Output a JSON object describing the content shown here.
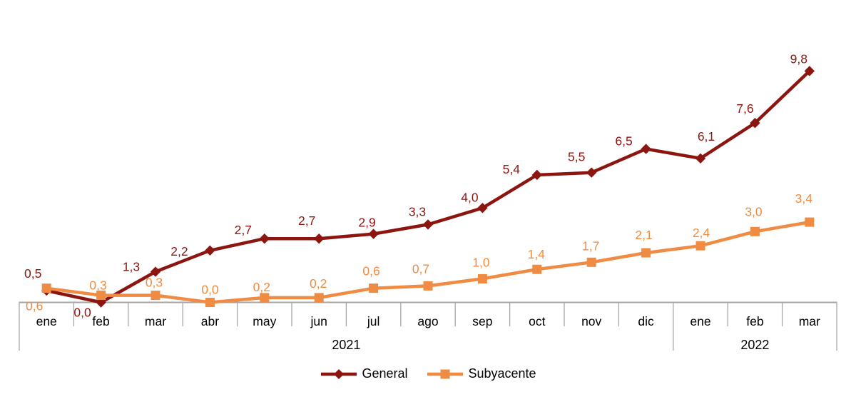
{
  "page": {
    "background": "#ffffff"
  },
  "chart_data": {
    "type": "line",
    "title": "",
    "xlabel": "",
    "ylabel": "",
    "categories": [
      "ene",
      "feb",
      "mar",
      "abr",
      "may",
      "jun",
      "jul",
      "ago",
      "sep",
      "oct",
      "nov",
      "dic",
      "ene",
      "feb",
      "mar"
    ],
    "year_groups": [
      {
        "label": "2021",
        "months": 12
      },
      {
        "label": "2022",
        "months": 3
      }
    ],
    "ylim": [
      0,
      11.6
    ],
    "grid": false,
    "y_axis_shown": false,
    "legend_position": "bottom-center",
    "axis_color": "#a6a6a6",
    "text_color": "#000000",
    "decimal_separator": ",",
    "series": [
      {
        "name": "General",
        "key": "general",
        "marker": "diamond",
        "color": "#8c1510",
        "values": [
          0.5,
          0.0,
          1.3,
          2.2,
          2.7,
          2.7,
          2.9,
          3.3,
          4.0,
          5.4,
          5.5,
          6.5,
          6.1,
          7.6,
          9.8
        ],
        "labels": [
          "0,5",
          "0,0",
          "1,3",
          "2,2",
          "2,7",
          "2,7",
          "2,9",
          "3,3",
          "4,0",
          "5,4",
          "5,5",
          "6,5",
          "6,1",
          "7,6",
          "9,8"
        ],
        "label_offsets": [
          [
            -19,
            -24
          ],
          [
            -26,
            14
          ],
          [
            -34,
            -7
          ],
          [
            -43,
            1
          ],
          [
            -30,
            -12
          ],
          [
            -17,
            -25
          ],
          [
            -9,
            -16
          ],
          [
            -15,
            -18
          ],
          [
            -18,
            -15
          ],
          [
            -36,
            -8
          ],
          [
            -21,
            -22
          ],
          [
            -31,
            -11
          ],
          [
            8,
            -31
          ],
          [
            -14,
            -20
          ],
          [
            -15,
            -17
          ]
        ]
      },
      {
        "name": "Subyacente",
        "key": "subyacente",
        "marker": "square",
        "color": "#ef8b42",
        "values": [
          0.6,
          0.3,
          0.3,
          0.0,
          0.2,
          0.2,
          0.6,
          0.7,
          1.0,
          1.4,
          1.7,
          2.1,
          2.4,
          3.0,
          3.4
        ],
        "labels": [
          "0,6",
          "0,3",
          "0,3",
          "0,0",
          "0,2",
          "0,2",
          "0,6",
          "0,7",
          "1,0",
          "1,4",
          "1,7",
          "2,1",
          "2,4",
          "3,0",
          "3,4"
        ],
        "label_offsets": [
          [
            -17,
            25
          ],
          [
            -4,
            -14
          ],
          [
            -2,
            -18
          ],
          [
            0,
            -18
          ],
          [
            -4,
            -15
          ],
          [
            -1,
            -20
          ],
          [
            -3,
            -24
          ],
          [
            -10,
            -24
          ],
          [
            -2,
            -23
          ],
          [
            -1,
            -21
          ],
          [
            -1,
            -23
          ],
          [
            -3,
            -25
          ],
          [
            1,
            -18
          ],
          [
            -2,
            -28
          ],
          [
            -8,
            -33
          ]
        ]
      }
    ]
  }
}
